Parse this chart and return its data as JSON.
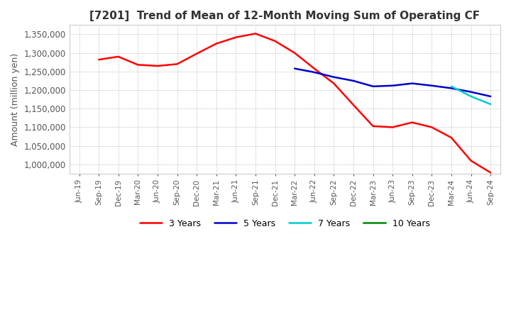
{
  "title": "[7201]  Trend of Mean of 12-Month Moving Sum of Operating CF",
  "ylabel": "Amount (million yen)",
  "ylim": [
    975000,
    1375000
  ],
  "yticks": [
    1000000,
    1050000,
    1100000,
    1150000,
    1200000,
    1250000,
    1300000,
    1350000
  ],
  "background_color": "#ffffff",
  "grid_color": "#aaaaaa",
  "line_colors": {
    "3y": "#ff0000",
    "5y": "#0000cc",
    "7y": "#00cccc",
    "10y": "#008800"
  },
  "legend_labels": [
    "3 Years",
    "5 Years",
    "7 Years",
    "10 Years"
  ],
  "x_labels": [
    "Jun-19",
    "Sep-19",
    "Dec-19",
    "Mar-20",
    "Jun-20",
    "Sep-20",
    "Dec-20",
    "Mar-21",
    "Jun-21",
    "Sep-21",
    "Dec-21",
    "Mar-22",
    "Jun-22",
    "Sep-22",
    "Dec-22",
    "Mar-23",
    "Jun-23",
    "Sep-23",
    "Dec-23",
    "Mar-24",
    "Jun-24",
    "Sep-24"
  ],
  "data_3y": [
    null,
    1282000,
    1290000,
    1268000,
    1265000,
    1270000,
    1298000,
    1325000,
    1342000,
    1352000,
    1332000,
    1300000,
    1258000,
    1218000,
    1160000,
    1103000,
    1100000,
    1113000,
    1100000,
    1072000,
    1010000,
    978000
  ],
  "data_5y": [
    null,
    null,
    null,
    null,
    null,
    null,
    null,
    null,
    null,
    null,
    null,
    1258000,
    1248000,
    1235000,
    1225000,
    1210000,
    1212000,
    1218000,
    1212000,
    1205000,
    1195000,
    1183000
  ],
  "data_7y": [
    null,
    null,
    null,
    null,
    null,
    null,
    null,
    null,
    null,
    null,
    null,
    null,
    null,
    null,
    null,
    null,
    null,
    null,
    null,
    1210000,
    1183000,
    1162000
  ],
  "data_10y": [
    null,
    null,
    null,
    null,
    null,
    null,
    null,
    null,
    null,
    null,
    null,
    null,
    null,
    null,
    null,
    null,
    null,
    null,
    null,
    null,
    null,
    null
  ]
}
